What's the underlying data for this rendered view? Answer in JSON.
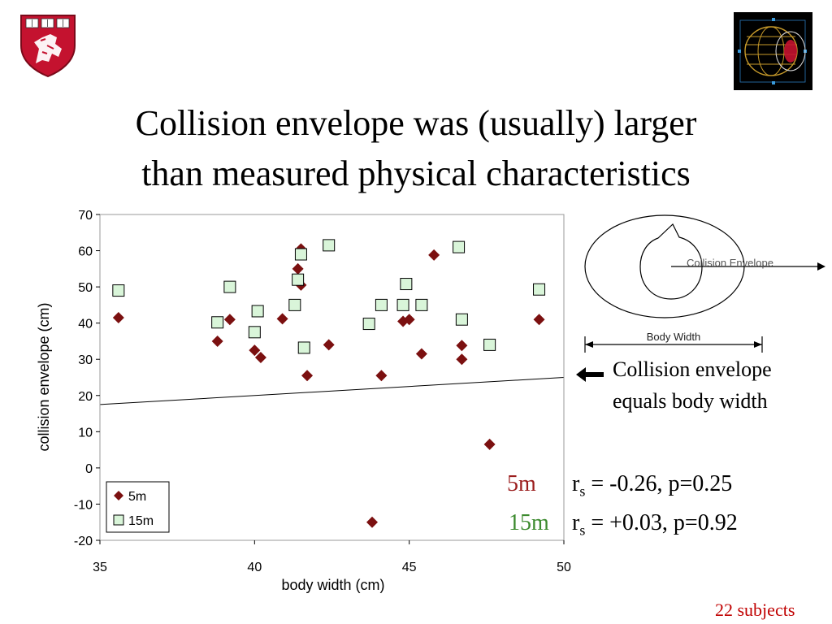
{
  "slide": {
    "title_line1": "Collision envelope was (usually) larger",
    "title_line2": "than measured physical characteristics",
    "footer": "22 subjects"
  },
  "diagram": {
    "envelope_label": "Collision Envelope",
    "width_label": "Body Width"
  },
  "annotation": {
    "line1": "Collision envelope",
    "line2": "equals body width"
  },
  "stats": [
    {
      "series": "5m",
      "text": " = -0.26, p=0.25",
      "color": "#9b1d1d"
    },
    {
      "series": "15m",
      "text": " = +0.03, p=0.92",
      "color": "#3c8a2e"
    }
  ],
  "stat_symbol": "r",
  "stat_sub": "s",
  "chart_data": {
    "type": "scatter",
    "xlabel": "body width (cm)",
    "ylabel": "collision envelope (cm)",
    "xlim": [
      35,
      50
    ],
    "ylim": [
      -20,
      70
    ],
    "xticks": [
      "35",
      "40",
      "45",
      "50"
    ],
    "yticks": [
      "-20",
      "-10",
      "0",
      "10",
      "20",
      "30",
      "40",
      "50",
      "60",
      "70"
    ],
    "grid": false,
    "legend": "bottom-left",
    "reference_line": {
      "label": "Collision envelope equals body width",
      "x": [
        35,
        50
      ],
      "y": [
        17.5,
        25
      ]
    },
    "series": [
      {
        "name": "5m",
        "marker": "diamond",
        "color": "#7b1010",
        "points": [
          [
            35.6,
            41.5
          ],
          [
            38.8,
            35
          ],
          [
            39.2,
            41
          ],
          [
            40,
            32.5
          ],
          [
            40.2,
            30.5
          ],
          [
            40.9,
            41.2
          ],
          [
            41.4,
            55
          ],
          [
            41.5,
            50.5
          ],
          [
            41.5,
            60.5
          ],
          [
            41.7,
            25.5
          ],
          [
            42.4,
            34
          ],
          [
            43.8,
            -15
          ],
          [
            44.1,
            25.5
          ],
          [
            44.8,
            40.5
          ],
          [
            45,
            41
          ],
          [
            45.4,
            31.5
          ],
          [
            45.8,
            58.8
          ],
          [
            46.7,
            33.8
          ],
          [
            46.7,
            30
          ],
          [
            47.6,
            6.5
          ],
          [
            49.2,
            41
          ]
        ]
      },
      {
        "name": "15m",
        "marker": "square",
        "color": "#d9f5d9",
        "points": [
          [
            35.6,
            49
          ],
          [
            38.8,
            40.2
          ],
          [
            39.2,
            50
          ],
          [
            40,
            37.5
          ],
          [
            40.1,
            43.3
          ],
          [
            41.3,
            45
          ],
          [
            41.4,
            52
          ],
          [
            41.5,
            59
          ],
          [
            41.6,
            33.2
          ],
          [
            42.4,
            61.5
          ],
          [
            43.7,
            39.8
          ],
          [
            44.1,
            45
          ],
          [
            44.8,
            45
          ],
          [
            44.9,
            50.8
          ],
          [
            45.4,
            45
          ],
          [
            46.6,
            61
          ],
          [
            46.7,
            41
          ],
          [
            47.6,
            34
          ],
          [
            49.2,
            49.3
          ]
        ]
      }
    ]
  }
}
